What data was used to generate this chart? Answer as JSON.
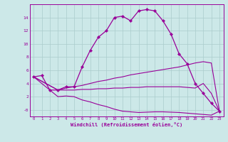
{
  "xlabel": "Windchill (Refroidissement éolien,°C)",
  "bg_color": "#cce8e8",
  "grid_color": "#aacccc",
  "line_color": "#990099",
  "xlim": [
    -0.5,
    23.5
  ],
  "ylim": [
    -1.0,
    16.0
  ],
  "xticks": [
    0,
    1,
    2,
    3,
    4,
    5,
    6,
    7,
    8,
    9,
    10,
    11,
    12,
    13,
    14,
    15,
    16,
    17,
    18,
    19,
    20,
    21,
    22,
    23
  ],
  "yticks": [
    0,
    2,
    4,
    6,
    8,
    10,
    12,
    14
  ],
  "ytick_labels": [
    "-0",
    "2",
    "4",
    "6",
    "8",
    "10",
    "12",
    "14"
  ],
  "line1_x": [
    0,
    1,
    2,
    3,
    4,
    5,
    6,
    7,
    8,
    9,
    10,
    11,
    12,
    13,
    14,
    15,
    16,
    17,
    18,
    19,
    20,
    21,
    22,
    23
  ],
  "line1_y": [
    5.0,
    5.2,
    3.0,
    3.0,
    3.5,
    3.5,
    6.5,
    9.0,
    11.0,
    12.0,
    14.0,
    14.2,
    13.5,
    15.0,
    15.2,
    15.0,
    13.5,
    11.5,
    8.5,
    7.0,
    4.0,
    2.5,
    1.0,
    -0.2
  ],
  "line2_x": [
    0,
    3,
    4,
    5,
    6,
    7,
    8,
    9,
    10,
    11,
    12,
    13,
    14,
    15,
    16,
    17,
    18,
    19,
    20,
    21,
    22,
    23
  ],
  "line2_y": [
    5.0,
    3.0,
    3.3,
    3.5,
    3.7,
    4.0,
    4.3,
    4.5,
    4.8,
    5.0,
    5.3,
    5.5,
    5.7,
    5.9,
    6.1,
    6.3,
    6.5,
    6.8,
    7.1,
    7.3,
    7.1,
    -0.2
  ],
  "line3_x": [
    0,
    3,
    4,
    5,
    6,
    7,
    8,
    9,
    10,
    11,
    12,
    13,
    14,
    15,
    16,
    17,
    18,
    19,
    20,
    21,
    22,
    23
  ],
  "line3_y": [
    5.0,
    3.0,
    3.0,
    3.0,
    3.1,
    3.1,
    3.2,
    3.2,
    3.3,
    3.3,
    3.4,
    3.4,
    3.5,
    3.5,
    3.5,
    3.5,
    3.5,
    3.4,
    3.3,
    4.0,
    2.5,
    -0.2
  ],
  "line4_x": [
    0,
    3,
    4,
    5,
    6,
    7,
    8,
    9,
    10,
    11,
    12,
    13,
    14,
    15,
    16,
    17,
    18,
    19,
    20,
    21,
    22,
    23
  ],
  "line4_y": [
    5.0,
    2.0,
    2.1,
    2.0,
    1.5,
    1.2,
    0.8,
    0.5,
    0.1,
    -0.2,
    -0.3,
    -0.4,
    -0.35,
    -0.3,
    -0.3,
    -0.35,
    -0.4,
    -0.5,
    -0.6,
    -0.7,
    -0.8,
    -0.2
  ]
}
